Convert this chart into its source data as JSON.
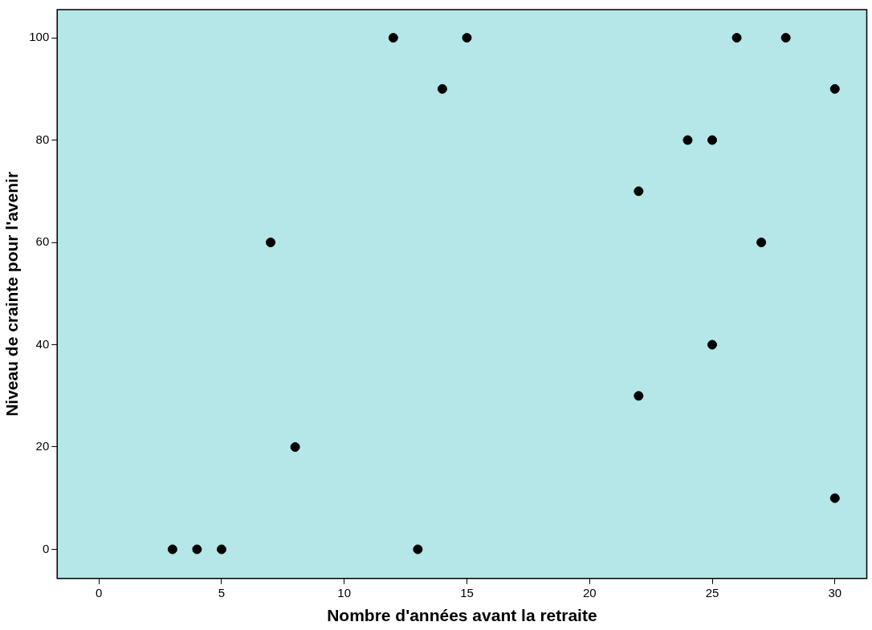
{
  "chart_data": {
    "type": "scatter",
    "xlabel": "Nombre d'années avant la retraite",
    "ylabel": "Niveau de crainte pour l'avenir",
    "x": [
      3,
      4,
      5,
      7,
      8,
      12,
      13,
      14,
      15,
      22,
      22,
      24,
      25,
      25,
      26,
      27,
      28,
      30,
      30
    ],
    "values": [
      0,
      0,
      0,
      60,
      20,
      100,
      0,
      90,
      100,
      70,
      30,
      80,
      80,
      40,
      100,
      60,
      100,
      90,
      10
    ],
    "color": "#000000",
    "marker": "circle",
    "grid": false,
    "xlim": [
      -1.7,
      31.3
    ],
    "xticks": [
      0,
      5,
      10,
      15,
      20,
      25,
      30
    ],
    "ylim": [
      -5.7,
      105.5
    ],
    "yticks": [
      0,
      20,
      40,
      60,
      80,
      100
    ]
  }
}
